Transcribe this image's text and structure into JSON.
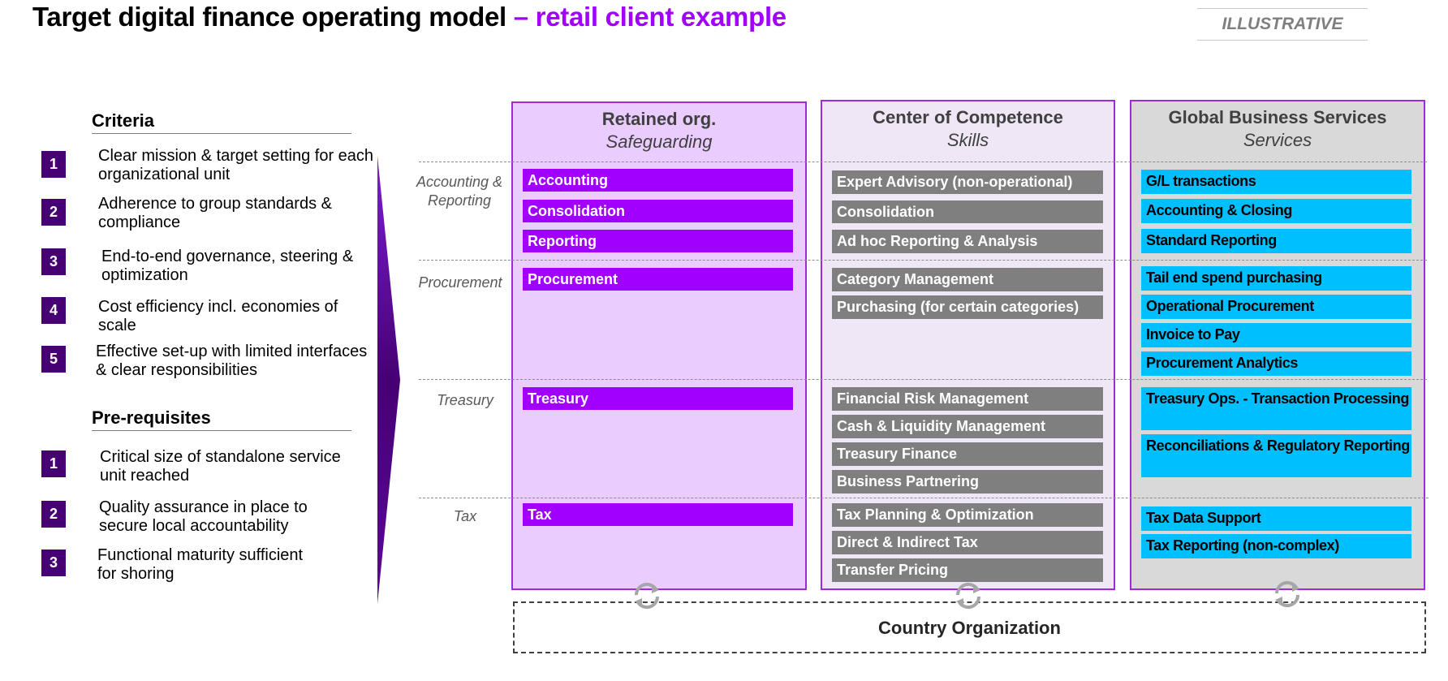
{
  "title": {
    "main": "Target digital finance operating model",
    "accent": " – retail client example"
  },
  "badge": "ILLUSTRATIVE",
  "criteria": {
    "heading": "Criteria",
    "items": [
      {
        "num": "1",
        "text": "Clear mission & target setting for each organizational unit"
      },
      {
        "num": "2",
        "text": "Adherence to group standards & compliance"
      },
      {
        "num": "3",
        "text": "End-to-end governance, steering & optimization"
      },
      {
        "num": "4",
        "text": "Cost efficiency incl. economies of scale"
      },
      {
        "num": "5",
        "text": "Effective set-up with limited interfaces & clear responsibilities"
      }
    ]
  },
  "prerequisites": {
    "heading": "Pre-requisites",
    "items": [
      {
        "num": "1",
        "text": "Critical size of standalone service unit reached"
      },
      {
        "num": "2",
        "text": "Quality assurance in place to secure local accountability"
      },
      {
        "num": "3",
        "text": "Functional maturity sufficient for shoring"
      }
    ]
  },
  "rows": [
    "Accounting & Reporting",
    "Procurement",
    "Treasury",
    "Tax"
  ],
  "columns": [
    {
      "title": "Retained org.",
      "subtitle": "Safeguarding",
      "accounting": [
        "Accounting",
        "Consolidation",
        "Reporting"
      ],
      "procurement": [
        "Procurement"
      ],
      "treasury": [
        "Treasury"
      ],
      "tax": [
        "Tax"
      ]
    },
    {
      "title": "Center of Competence",
      "subtitle": "Skills",
      "accounting": [
        "Expert Advisory (non-operational)",
        "Consolidation",
        "Ad hoc Reporting & Analysis"
      ],
      "procurement": [
        "Category Management",
        "Purchasing (for certain categories)"
      ],
      "treasury": [
        "Financial Risk Management",
        "Cash & Liquidity Management",
        "Treasury Finance",
        "Business Partnering"
      ],
      "tax": [
        "Tax Planning & Optimization",
        "Direct & Indirect Tax",
        "Transfer Pricing"
      ]
    },
    {
      "title": "Global Business Services",
      "subtitle": "Services",
      "accounting": [
        "G/L transactions",
        "Accounting & Closing",
        "Standard Reporting"
      ],
      "procurement": [
        "Tail end spend purchasing",
        "Operational Procurement",
        "Invoice to Pay",
        "Procurement Analytics"
      ],
      "treasury": [
        "Treasury  Ops. - Transaction Processing",
        "Reconciliations & Regulatory Reporting"
      ],
      "tax": [
        "Tax Data Support",
        "Tax Reporting (non-complex)"
      ]
    }
  ],
  "footer": "Country Organization",
  "colors": {
    "accent": "#a100ff",
    "dark_purple": "#460073",
    "retained_bg": "#ebccff",
    "coc_bg": "#efe7f5",
    "gbs_bg": "#d9d9d9",
    "grey_box": "#7f7f7f",
    "cyan_box": "#00bfff"
  }
}
